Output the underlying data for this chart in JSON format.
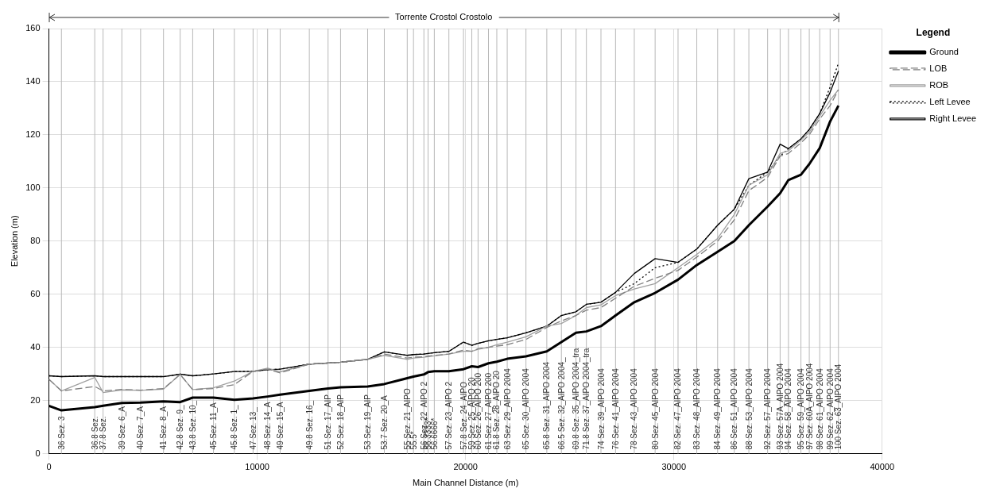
{
  "chart_data": {
    "type": "line",
    "xlabel": "Main Channel Distance (m)",
    "ylabel": "Elevation (m)",
    "annotations": [
      "Torrente Crostol Crostolo",
      {
        "text": "55.5*",
        "x": 17500,
        "y": 0
      },
      {
        "text": "56.3333*",
        "x": 18200,
        "y": 0
      },
      {
        "text": "56.6666*",
        "x": 18500,
        "y": 0
      }
    ],
    "legend_title": "Legend",
    "legend": "right",
    "grid": true,
    "marker": "none",
    "xlim": [
      0,
      40000
    ],
    "xticks": [
      0,
      10000,
      20000,
      30000,
      40000
    ],
    "ylim": [
      0,
      160
    ],
    "yticks": [
      0,
      20,
      40,
      60,
      80,
      100,
      120,
      140,
      160
    ],
    "x": [
      0,
      600,
      2200,
      2600,
      3500,
      4400,
      5500,
      6300,
      6900,
      7900,
      8900,
      9800,
      10500,
      11100,
      12500,
      13400,
      14000,
      15300,
      16100,
      17200,
      17500,
      18000,
      18200,
      18500,
      19200,
      19900,
      20300,
      20600,
      21100,
      21500,
      22000,
      22900,
      23900,
      24600,
      25300,
      25800,
      26500,
      27200,
      28100,
      29100,
      30200,
      31100,
      32100,
      32900,
      33600,
      34500,
      35100,
      35500,
      36100,
      36500,
      37000,
      37500,
      37900
    ],
    "series": [
      {
        "name": "Ground",
        "color": "#000000",
        "line_style": "solid",
        "values": [
          18,
          16.3,
          17.5,
          18,
          19.1,
          19.2,
          19.7,
          19.4,
          21.1,
          21.1,
          20.3,
          20.8,
          21.5,
          22.2,
          23.6,
          24.5,
          25,
          25.3,
          26.2,
          28.4,
          29,
          29.8,
          30.7,
          31,
          31,
          31.8,
          32.9,
          32.6,
          34,
          34.6,
          35.7,
          36.6,
          38.5,
          42,
          45.5,
          46,
          48,
          52,
          57,
          60.5,
          65.5,
          71,
          76,
          80,
          86,
          93,
          98,
          103,
          105,
          109,
          115,
          125,
          131
        ]
      },
      {
        "name": "LOB",
        "color": "#808080",
        "line_style": "dashed",
        "values": [
          28,
          23.6,
          25.3,
          23.6,
          24.2,
          23.9,
          24.5,
          29.8,
          24.1,
          24.5,
          26,
          31,
          31.8,
          30.4,
          33.7,
          34.1,
          34.4,
          35.5,
          37.5,
          36,
          36.3,
          36.5,
          36.7,
          37,
          37.5,
          39,
          38.5,
          39.5,
          40,
          40.5,
          41,
          43,
          47.5,
          50,
          52,
          54,
          55,
          58.5,
          63,
          66,
          69,
          74,
          80,
          88,
          99,
          104,
          112,
          113,
          117,
          120,
          126,
          131,
          137
        ]
      },
      {
        "name": "ROB",
        "color": "#a0a0a0",
        "line_style": "solid",
        "values": [
          28,
          23.6,
          28.7,
          23,
          24,
          23.8,
          24.3,
          29.8,
          24.1,
          24.8,
          27.3,
          31,
          32.2,
          30.8,
          33.7,
          34.1,
          34.4,
          35.5,
          37,
          35.5,
          36,
          36.3,
          36.5,
          36.8,
          37.5,
          38.5,
          38.5,
          39.3,
          40,
          41,
          42,
          44,
          48,
          49,
          52,
          55,
          56,
          59.5,
          62,
          64,
          70,
          75,
          81,
          90,
          101,
          105,
          113,
          114,
          118,
          121,
          127,
          133,
          137
        ]
      },
      {
        "name": "Left Levee",
        "color": "#000000",
        "line_style": "dotted",
        "values": [
          29.3,
          29,
          29.3,
          29,
          29,
          29,
          29,
          29.9,
          29.3,
          30,
          30.9,
          31,
          31.6,
          31.8,
          33.7,
          34.1,
          34.4,
          35.5,
          38.3,
          37,
          37.3,
          37.5,
          37.7,
          38,
          38.5,
          42,
          40.8,
          41.5,
          42.5,
          43,
          43.6,
          45.5,
          48,
          52,
          53.4,
          56.2,
          57,
          60.7,
          64,
          70,
          72,
          77,
          86,
          92,
          101,
          106,
          112,
          114.8,
          118.5,
          122,
          128,
          138,
          147
        ]
      },
      {
        "name": "Right Levee",
        "color": "#000000",
        "line_style": "solid",
        "values": [
          29.3,
          29,
          29.3,
          29,
          29,
          29,
          29,
          29.9,
          29.3,
          30,
          30.9,
          31,
          31.6,
          31.8,
          33.7,
          34.1,
          34.4,
          35.5,
          38.3,
          37,
          37.3,
          37.5,
          37.7,
          38,
          38.5,
          42,
          40.8,
          41.5,
          42.5,
          43,
          43.6,
          45.5,
          48,
          52,
          53.4,
          56.2,
          57,
          60.7,
          67.8,
          73.4,
          72,
          77,
          86,
          92,
          103.5,
          106,
          116.5,
          114.8,
          118.5,
          122,
          128,
          136,
          144
        ]
      }
    ],
    "ref_lines": [
      {
        "axis": "x",
        "value": 600,
        "label": "36 Sez. 3"
      },
      {
        "axis": "x",
        "value": 2200,
        "label": "36.8 Sez."
      },
      {
        "axis": "x",
        "value": 2600,
        "label": "37.8 Sez."
      },
      {
        "axis": "x",
        "value": 3500,
        "label": "39 Sez. 6_A"
      },
      {
        "axis": "x",
        "value": 4400,
        "label": "40 Sez. 7_A"
      },
      {
        "axis": "x",
        "value": 5500,
        "label": "41 Sez. 8_A"
      },
      {
        "axis": "x",
        "value": 6300,
        "label": "42.8 Sez. 9_"
      },
      {
        "axis": "x",
        "value": 6900,
        "label": "43.8 Sez. 10_"
      },
      {
        "axis": "x",
        "value": 7900,
        "label": "45 Sez. 11_A"
      },
      {
        "axis": "x",
        "value": 8900,
        "label": "45.8 Sez. 1_"
      },
      {
        "axis": "x",
        "value": 9800,
        "label": "47 Sez. 13_"
      },
      {
        "axis": "x",
        "value": 10500,
        "label": "48 Sez. 14_A"
      },
      {
        "axis": "x",
        "value": 11100,
        "label": "49 Sez. 15_A"
      },
      {
        "axis": "x",
        "value": 12500,
        "label": "49.8 Sez. 16_"
      },
      {
        "axis": "x",
        "value": 13400,
        "label": "51 Sez. 17_AIP"
      },
      {
        "axis": "x",
        "value": 14000,
        "label": "52 Sez. 18_AIP"
      },
      {
        "axis": "x",
        "value": 15300,
        "label": "53 Sez. 19_AIP"
      },
      {
        "axis": "x",
        "value": 16100,
        "label": "53.7 Sez. 20_A"
      },
      {
        "axis": "x",
        "value": 17200,
        "label": "55 Sez. 21_AIPO"
      },
      {
        "axis": "x",
        "value": 17500
      },
      {
        "axis": "x",
        "value": 18000,
        "label": "56 Sez. 22_AIPO 2"
      },
      {
        "axis": "x",
        "value": 18200
      },
      {
        "axis": "x",
        "value": 18500
      },
      {
        "axis": "x",
        "value": 19200,
        "label": "57 Sez. 23_AIPO 2"
      },
      {
        "axis": "x",
        "value": 19900,
        "label": "57.8 Sez. 24_AIPO"
      },
      {
        "axis": "x",
        "value": 20300,
        "label": "59 Sez. 25_AIPO 20"
      },
      {
        "axis": "x",
        "value": 20600,
        "label": "60 Sez. 26_AIPO 200"
      },
      {
        "axis": "x",
        "value": 21100,
        "label": "61 Sez. 27_AIPO 200"
      },
      {
        "axis": "x",
        "value": 21500,
        "label": "61.8 Sez. 28_AIPO 20"
      },
      {
        "axis": "x",
        "value": 22000,
        "label": "63 Sez. 29_AIPO 2004"
      },
      {
        "axis": "x",
        "value": 22900,
        "label": "65 Sez. 30_AIPO 2004"
      },
      {
        "axis": "x",
        "value": 23900,
        "label": "65.8 Sez. 31_AIPO 2004"
      },
      {
        "axis": "x",
        "value": 24600,
        "label": "66.5 Sez. 32_AIPO 2004_"
      },
      {
        "axis": "x",
        "value": 25300,
        "label": "69.8 Sez. 35_AIPO 2004_tra"
      },
      {
        "axis": "x",
        "value": 25800,
        "label": "71.8 Sez. 37_AIPO 2004_tra"
      },
      {
        "axis": "x",
        "value": 26500,
        "label": "74 Sez. 39_AIPO 2004"
      },
      {
        "axis": "x",
        "value": 27200,
        "label": "76 Sez. 41_AIPO 2004"
      },
      {
        "axis": "x",
        "value": 28100,
        "label": "78 Sez. 43_AIPO 2004"
      },
      {
        "axis": "x",
        "value": 29100,
        "label": "80 Sez. 45_AIPO 2004"
      },
      {
        "axis": "x",
        "value": 30200,
        "label": "82 Sez. 47_AIPO 2004"
      },
      {
        "axis": "x",
        "value": 31100,
        "label": "83 Sez. 48_AIPO 2004"
      },
      {
        "axis": "x",
        "value": 32100,
        "label": "84 Sez. 49_AIPO 2004"
      },
      {
        "axis": "x",
        "value": 32900,
        "label": "86 Sez. 51_AIPO 2004"
      },
      {
        "axis": "x",
        "value": 33600,
        "label": "88 Sez. 53_AIPO 2004"
      },
      {
        "axis": "x",
        "value": 34500,
        "label": "92 Sez. 57_AIPO 2004"
      },
      {
        "axis": "x",
        "value": 35100,
        "label": "93 Sez. 57A_AIPO 2004"
      },
      {
        "axis": "x",
        "value": 35500,
        "label": "94 Sez. 58_AIPO 2004"
      },
      {
        "axis": "x",
        "value": 36100,
        "label": "95 Sez. 59_AIPO 2004"
      },
      {
        "axis": "x",
        "value": 36500,
        "label": "97 Sez. 60A_AIPO 2004"
      },
      {
        "axis": "x",
        "value": 37000,
        "label": "98 Sez. 61_AIPO 2004"
      },
      {
        "axis": "x",
        "value": 37500,
        "label": "99 Sez. 62_AIPO 2004"
      },
      {
        "axis": "x",
        "value": 37900,
        "label": "100 Sez. 63_AIPO 2004"
      }
    ]
  }
}
